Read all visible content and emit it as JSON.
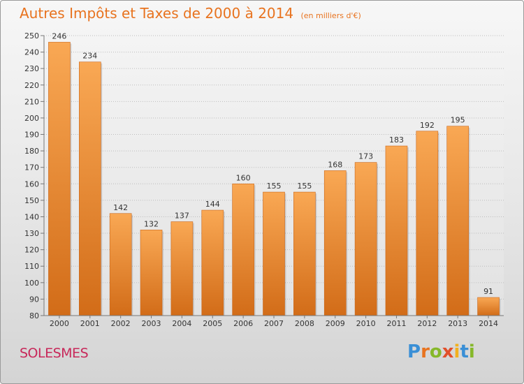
{
  "title": "Autres Impôts et Taxes de 2000 à 2014",
  "subtitle": "(en milliers d'€)",
  "commune": "SOLESMES",
  "logo": "Proxiti",
  "colors": {
    "bar": "#f08a2e",
    "bar_light": "#f9a854",
    "bar_dark": "#d26c18",
    "title": "#e8731f",
    "commune": "#c8285a"
  },
  "chart_data": {
    "type": "bar",
    "categories": [
      "2000",
      "2001",
      "2002",
      "2003",
      "2004",
      "2005",
      "2006",
      "2007",
      "2008",
      "2009",
      "2010",
      "2011",
      "2012",
      "2013",
      "2014"
    ],
    "values": [
      246,
      234,
      142,
      132,
      137,
      144,
      160,
      155,
      155,
      168,
      173,
      183,
      192,
      195,
      91
    ],
    "ylim": [
      80,
      250
    ],
    "yticks": [
      80,
      90,
      100,
      110,
      120,
      130,
      140,
      150,
      160,
      170,
      180,
      190,
      200,
      210,
      220,
      230,
      240,
      250
    ],
    "grid": true,
    "data_labels": true
  }
}
